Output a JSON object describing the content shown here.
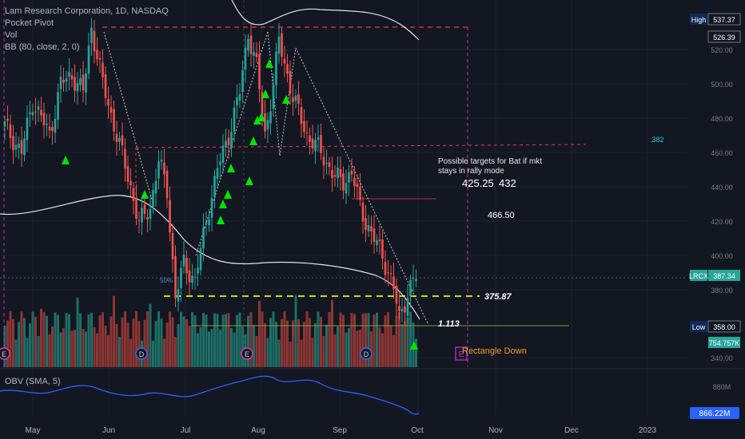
{
  "legend": {
    "title": "Lam Research Corporation, 1D, NASDAQ",
    "pocket_pivot": "Pocket Pivot",
    "vol": "Vol",
    "bb": "BB (80, close, 2, 0)",
    "obv": "OBV (SMA, 5)"
  },
  "colors": {
    "bg": "#131722",
    "up": "#26a69a",
    "down": "#ef5350",
    "vol_up": "#1e6e67",
    "vol_down": "#8c3634",
    "pivot": "#00e600",
    "bb": "#e0e3eb",
    "obv": "#2962ff",
    "red_dash": "#f23645",
    "green_dash": "#c6e000"
  },
  "price_axis": {
    "ticks": [
      "520.00",
      "500.00",
      "480.00",
      "460.00",
      "440.00",
      "420.00",
      "400.00",
      "380.00",
      "340.00"
    ],
    "tags": [
      {
        "text": "High",
        "value": "537.37",
        "kind": "dark"
      },
      {
        "text": "",
        "value": "526.39",
        "kind": "dark"
      },
      {
        "text": "LRCX",
        "value": "387.34",
        "kind": "teal"
      },
      {
        "text": "Low",
        "value": "358.00",
        "kind": "dark"
      },
      {
        "text": "",
        "value": "754.757K",
        "kind": "teal"
      }
    ]
  },
  "obv_axis": {
    "tick": "880M",
    "tag": "866.22M"
  },
  "time_axis": [
    "May",
    "Jun",
    "Jul",
    "Aug",
    "Sep",
    "Oct",
    "Nov",
    "Dec",
    "2023"
  ],
  "annotations": {
    "targets_line1": "Possible targets for Bat if mkt",
    "targets_line2": "stays in rally mode",
    "t1": "425.25",
    "t2": "432",
    "t3": "466.50",
    "level": "375.87",
    "fib": "1.113",
    "fib_382": ".382",
    "pct50": "50%",
    "pattern": "Rectangle Down"
  },
  "chart_data": {
    "type": "candlestick",
    "series": [
      {
        "name": "Lam Research Corporation",
        "x_range": [
          "2022-04-18",
          "2022-09-30"
        ],
        "last_close": 387.34
      },
      {
        "name": "BB (80, close, 2, 0)"
      },
      {
        "name": "Vol"
      },
      {
        "name": "OBV (SMA, 5)"
      }
    ],
    "y_ticks": [
      340,
      380,
      400,
      420,
      440,
      460,
      480,
      500,
      520
    ],
    "levels": {
      "high": 537.37,
      "low": 358.0,
      "red_dash_top": 533,
      "red_dash_mid": 465,
      "green_dash": 375.87,
      "targets": [
        425.25,
        432,
        466.5
      ]
    },
    "key_points": [
      {
        "date": "2022-05-31",
        "close": 533
      },
      {
        "date": "2022-06-16",
        "close": 410
      },
      {
        "date": "2022-06-30",
        "close": 375
      },
      {
        "date": "2022-08-03",
        "close": 532
      },
      {
        "date": "2022-08-11",
        "close": 470
      },
      {
        "date": "2022-08-16",
        "close": 525
      },
      {
        "date": "2022-09-06",
        "close": 448
      },
      {
        "date": "2022-09-26",
        "close": 363
      },
      {
        "date": "2022-09-30",
        "close": 387.34
      }
    ]
  }
}
